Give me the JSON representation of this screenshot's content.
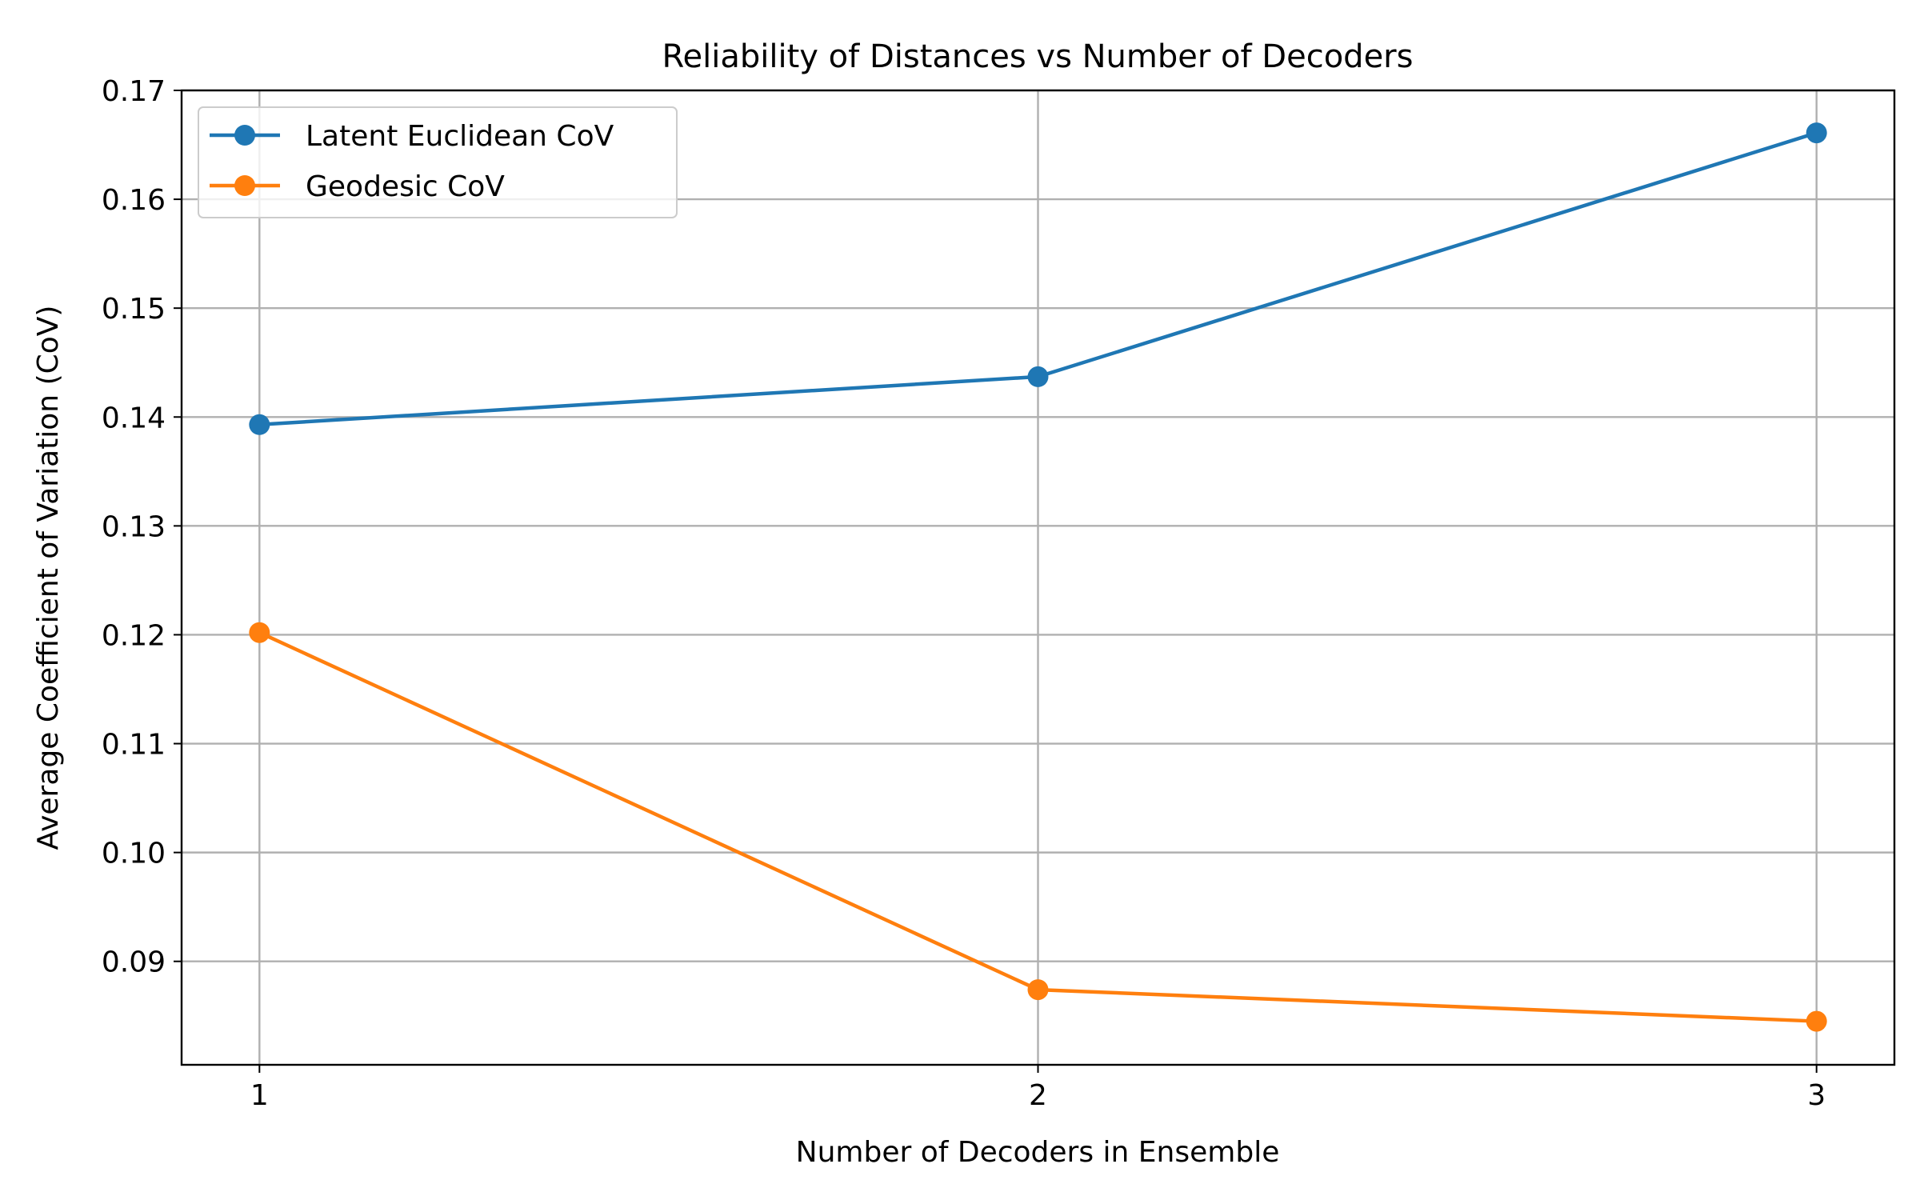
{
  "chart_data": {
    "type": "line",
    "title": "Reliability of Distances vs Number of Decoders",
    "xlabel": "Number of Decoders in Ensemble",
    "ylabel": "Average Coefficient of Variation (CoV)",
    "x": [
      1,
      2,
      3
    ],
    "xlim": [
      0.9,
      3.1
    ],
    "ylim": [
      0.0805,
      0.17
    ],
    "xticks": [
      "1",
      "2",
      "3"
    ],
    "yticks": [
      "0.09",
      "0.10",
      "0.11",
      "0.12",
      "0.13",
      "0.14",
      "0.15",
      "0.16",
      "0.17"
    ],
    "grid": true,
    "legend_position": "top-left",
    "series": [
      {
        "name": "Latent Euclidean CoV",
        "values": [
          0.1393,
          0.1437,
          0.1661
        ],
        "color": "#1f77b4",
        "marker": "circle"
      },
      {
        "name": "Geodesic CoV",
        "values": [
          0.1202,
          0.0874,
          0.0845
        ],
        "color": "#ff7f0e",
        "marker": "circle"
      }
    ]
  }
}
